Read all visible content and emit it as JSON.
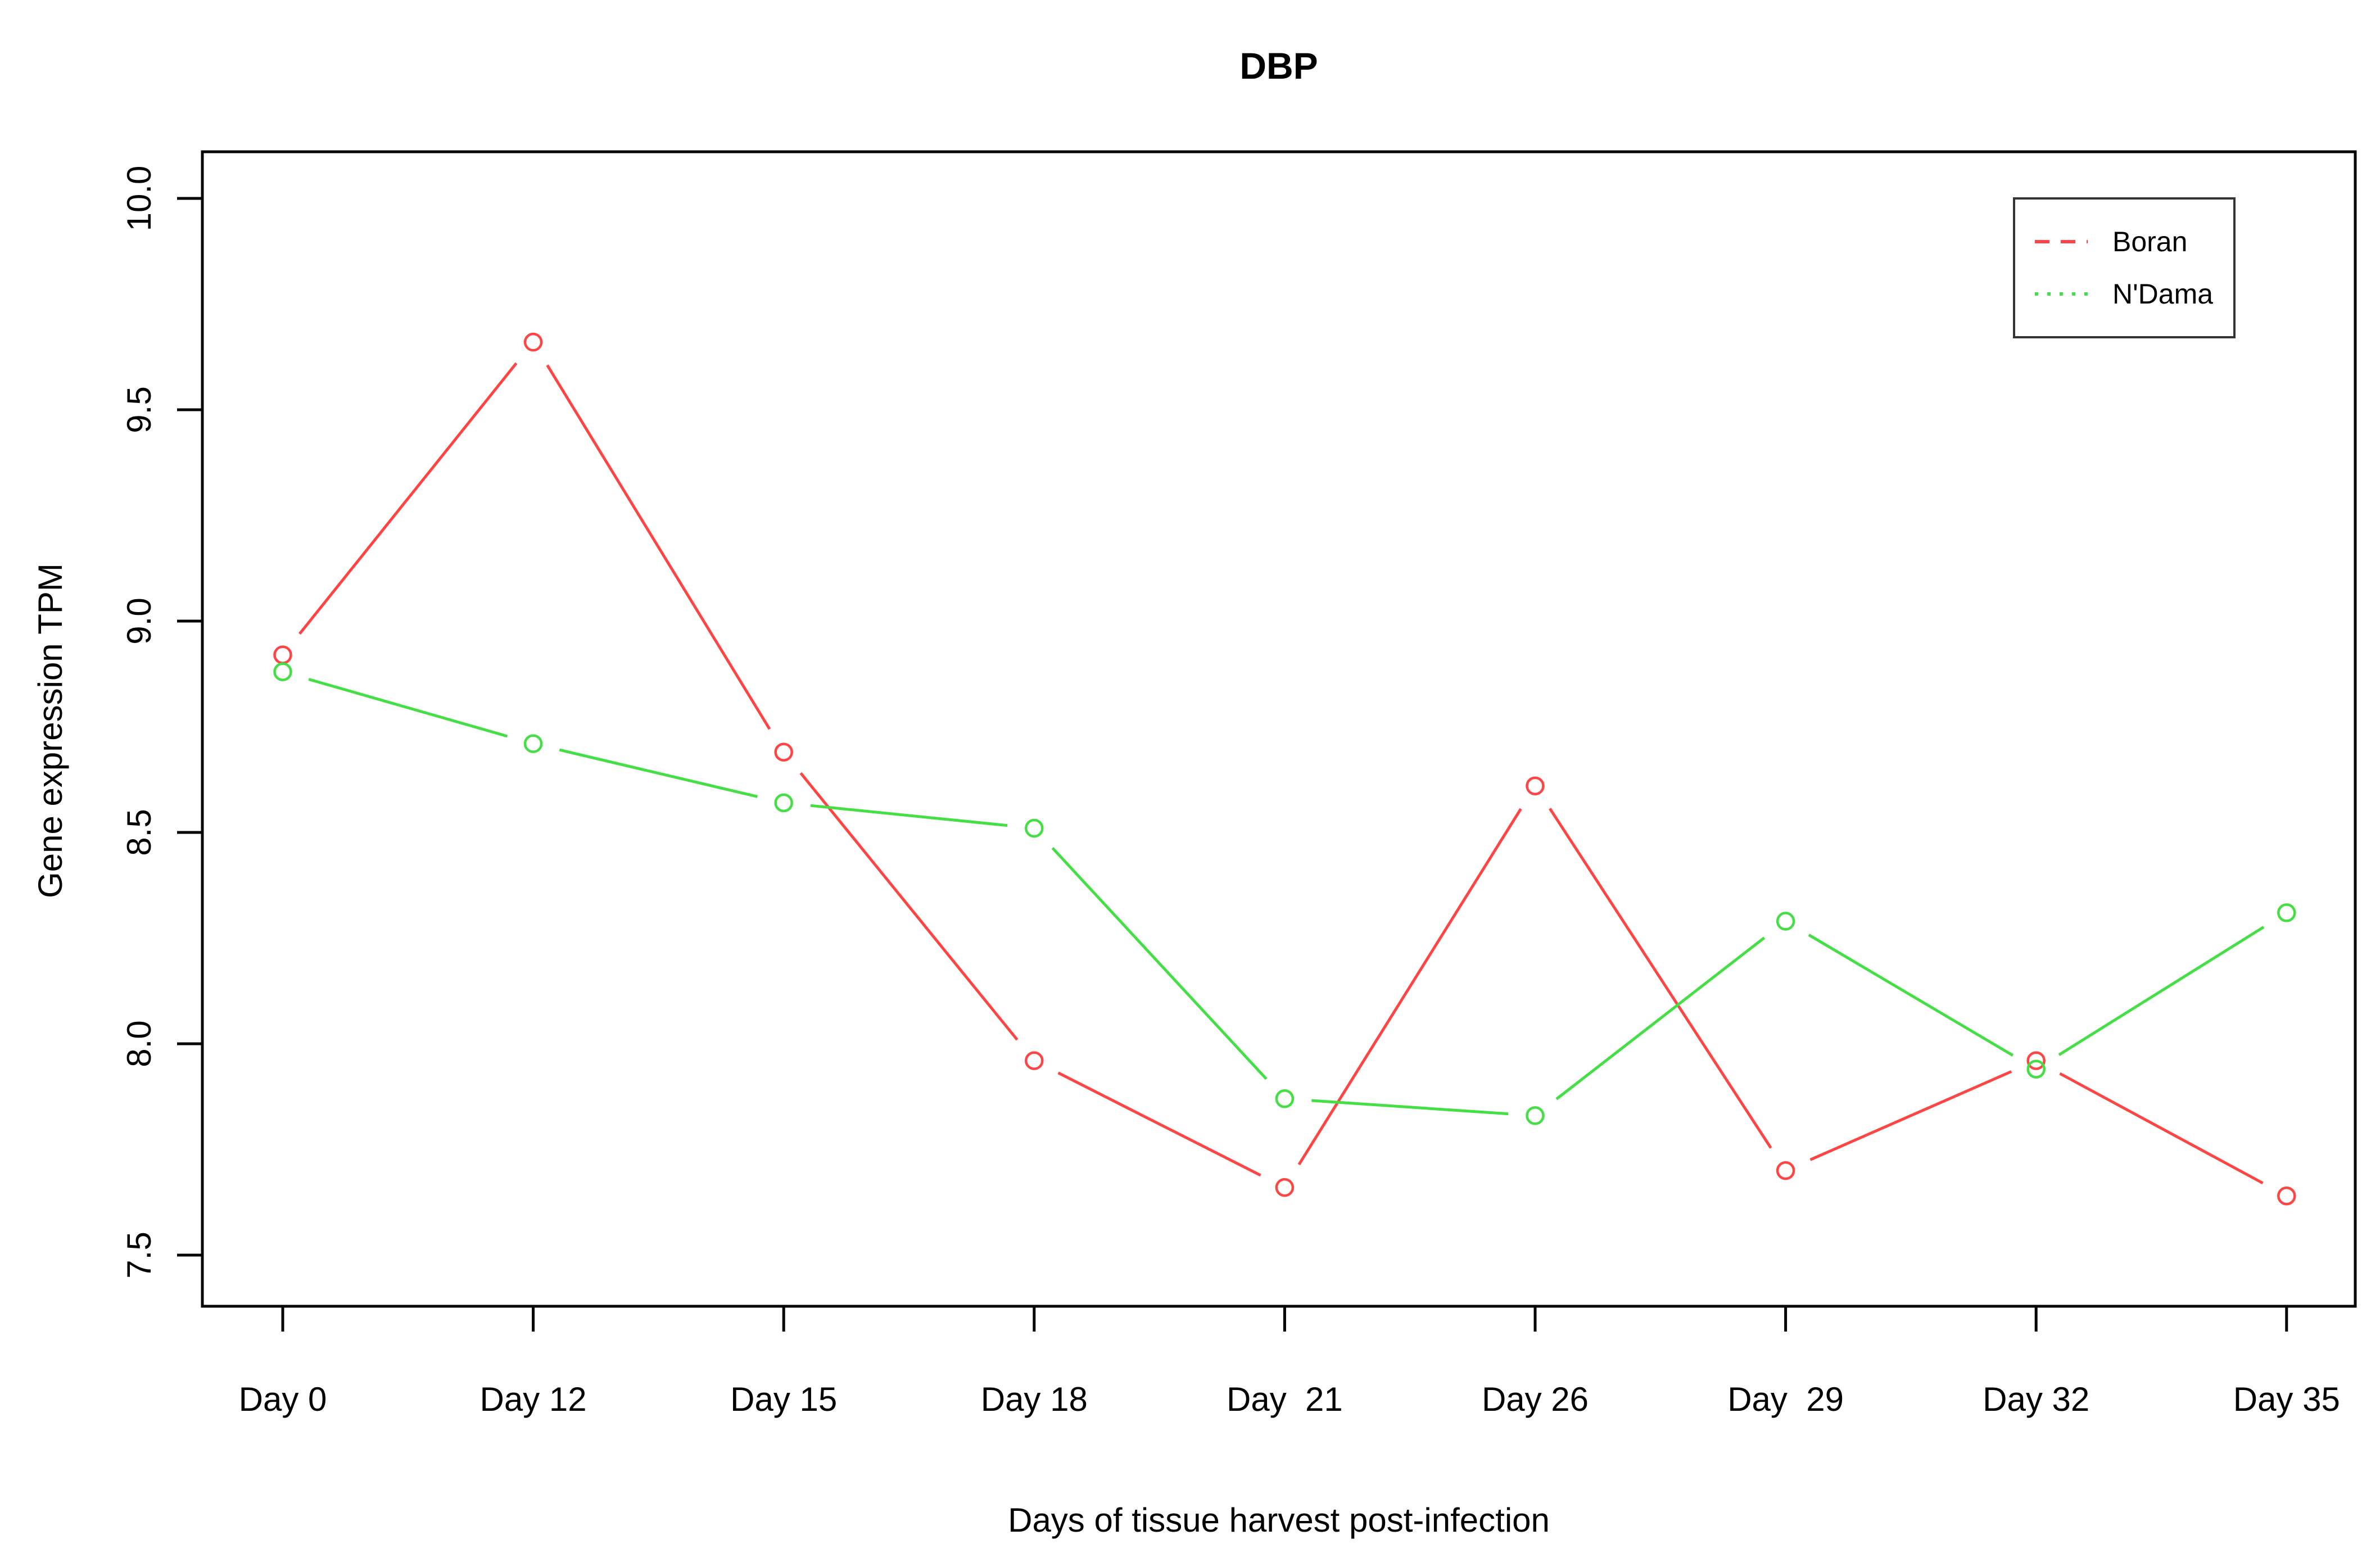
{
  "chart_data": {
    "type": "line",
    "title": "DBP",
    "xlabel": "Days of tissue harvest post-infection",
    "ylabel": "Gene expression TPM",
    "categories": [
      "Day 0",
      "Day 12",
      "Day 15",
      "Day 18",
      "Day  21",
      "Day 26",
      "Day  29",
      "Day 32",
      "Day 35"
    ],
    "y_ticks": [
      7.5,
      8.0,
      8.5,
      9.0,
      9.5,
      10.0
    ],
    "y_tick_labels": [
      "7.5",
      "8.0",
      "8.5",
      "9.0",
      "9.5",
      "10.0"
    ],
    "ylim": [
      7.38,
      10.11
    ],
    "grid": false,
    "marker": "open-circle",
    "line_style_plot": "solid-with-point-gaps",
    "legend_position": "top-right",
    "axis_color": "#000000",
    "series": [
      {
        "name": "Boran",
        "color": "#ff4444",
        "legend_line_style": "dashed",
        "values": [
          8.92,
          9.66,
          8.69,
          7.96,
          7.66,
          8.61,
          7.7,
          7.96,
          7.64
        ]
      },
      {
        "name": "N'Dama",
        "color": "#44df44",
        "legend_line_style": "dotted",
        "values": [
          8.88,
          8.71,
          8.57,
          8.51,
          7.87,
          7.83,
          8.29,
          7.94,
          8.31
        ]
      }
    ]
  }
}
